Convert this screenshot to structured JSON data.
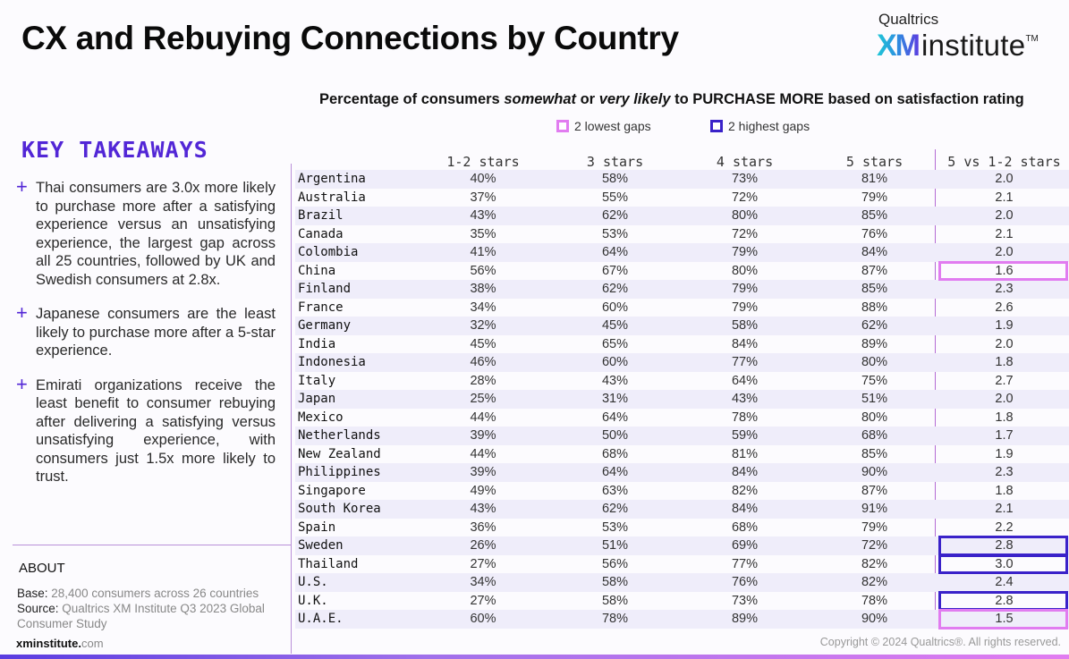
{
  "header": {
    "title": "CX and Rebuying Connections by Country",
    "logo": {
      "top": "Qualtrics",
      "xm": "XM",
      "institute": "institute",
      "tm": "TM"
    }
  },
  "chart": {
    "subtitle_parts": [
      "Percentage of consumers ",
      "somewhat",
      " or ",
      "very likely",
      " to PURCHASE MORE based on satisfaction rating"
    ],
    "legend": [
      {
        "label": "2 lowest gaps",
        "color": "#e17cf0"
      },
      {
        "label": "2 highest gaps",
        "color": "#3a22c9"
      }
    ]
  },
  "sidebar": {
    "title": "KEY TAKEAWAYS",
    "takeaways": [
      "Thai consumers are 3.0x more likely to purchase more after a satisfying experience versus an unsatisfying experience, the largest gap across all 25 countries, followed by UK and Swedish consumers at 2.8x.",
      "Japanese consumers are the least likely to purchase more after a 5-star experience.",
      "Emirati organizations receive the least benefit to consumer rebuying after delivering a satisfying versus unsatisfying experience, with consumers just 1.5x more likely to trust."
    ],
    "about": {
      "heading": "ABOUT",
      "base_label": "Base:",
      "base_value": " 28,400 consumers across 26 countries",
      "source_label": "Source:",
      "source_value": " Qualtrics XM Institute Q3 2023 Global Consumer Study"
    },
    "site_bold": "xminstitute.",
    "site_rest": "com"
  },
  "footer": {
    "copyright": "Copyright © 2024 Qualtrics®. All rights reserved."
  },
  "chart_data": {
    "type": "table",
    "title": "Percentage of consumers somewhat or very likely to PURCHASE MORE based on satisfaction rating",
    "columns": [
      "",
      "1-2 stars",
      "3 stars",
      "4 stars",
      "5 stars",
      "5 vs 1-2 stars"
    ],
    "rows": [
      {
        "country": "Argentina",
        "s12": "40%",
        "s3": "58%",
        "s4": "73%",
        "s5": "81%",
        "ratio": "2.0",
        "hl": ""
      },
      {
        "country": "Australia",
        "s12": "37%",
        "s3": "55%",
        "s4": "72%",
        "s5": "79%",
        "ratio": "2.1",
        "hl": ""
      },
      {
        "country": "Brazil",
        "s12": "43%",
        "s3": "62%",
        "s4": "80%",
        "s5": "85%",
        "ratio": "2.0",
        "hl": ""
      },
      {
        "country": "Canada",
        "s12": "35%",
        "s3": "53%",
        "s4": "72%",
        "s5": "76%",
        "ratio": "2.1",
        "hl": ""
      },
      {
        "country": "Colombia",
        "s12": "41%",
        "s3": "64%",
        "s4": "79%",
        "s5": "84%",
        "ratio": "2.0",
        "hl": ""
      },
      {
        "country": "China",
        "s12": "56%",
        "s3": "67%",
        "s4": "80%",
        "s5": "87%",
        "ratio": "1.6",
        "hl": "low"
      },
      {
        "country": "Finland",
        "s12": "38%",
        "s3": "62%",
        "s4": "79%",
        "s5": "85%",
        "ratio": "2.3",
        "hl": ""
      },
      {
        "country": "France",
        "s12": "34%",
        "s3": "60%",
        "s4": "79%",
        "s5": "88%",
        "ratio": "2.6",
        "hl": ""
      },
      {
        "country": "Germany",
        "s12": "32%",
        "s3": "45%",
        "s4": "58%",
        "s5": "62%",
        "ratio": "1.9",
        "hl": ""
      },
      {
        "country": "India",
        "s12": "45%",
        "s3": "65%",
        "s4": "84%",
        "s5": "89%",
        "ratio": "2.0",
        "hl": ""
      },
      {
        "country": "Indonesia",
        "s12": "46%",
        "s3": "60%",
        "s4": "77%",
        "s5": "80%",
        "ratio": "1.8",
        "hl": ""
      },
      {
        "country": "Italy",
        "s12": "28%",
        "s3": "43%",
        "s4": "64%",
        "s5": "75%",
        "ratio": "2.7",
        "hl": ""
      },
      {
        "country": "Japan",
        "s12": "25%",
        "s3": "31%",
        "s4": "43%",
        "s5": "51%",
        "ratio": "2.0",
        "hl": ""
      },
      {
        "country": "Mexico",
        "s12": "44%",
        "s3": "64%",
        "s4": "78%",
        "s5": "80%",
        "ratio": "1.8",
        "hl": ""
      },
      {
        "country": "Netherlands",
        "s12": "39%",
        "s3": "50%",
        "s4": "59%",
        "s5": "68%",
        "ratio": "1.7",
        "hl": ""
      },
      {
        "country": "New Zealand",
        "s12": "44%",
        "s3": "68%",
        "s4": "81%",
        "s5": "85%",
        "ratio": "1.9",
        "hl": ""
      },
      {
        "country": "Philippines",
        "s12": "39%",
        "s3": "64%",
        "s4": "84%",
        "s5": "90%",
        "ratio": "2.3",
        "hl": ""
      },
      {
        "country": "Singapore",
        "s12": "49%",
        "s3": "63%",
        "s4": "82%",
        "s5": "87%",
        "ratio": "1.8",
        "hl": ""
      },
      {
        "country": "South Korea",
        "s12": "43%",
        "s3": "62%",
        "s4": "84%",
        "s5": "91%",
        "ratio": "2.1",
        "hl": ""
      },
      {
        "country": "Spain",
        "s12": "36%",
        "s3": "53%",
        "s4": "68%",
        "s5": "79%",
        "ratio": "2.2",
        "hl": ""
      },
      {
        "country": "Sweden",
        "s12": "26%",
        "s3": "51%",
        "s4": "69%",
        "s5": "72%",
        "ratio": "2.8",
        "hl": "high"
      },
      {
        "country": "Thailand",
        "s12": "27%",
        "s3": "56%",
        "s4": "77%",
        "s5": "82%",
        "ratio": "3.0",
        "hl": "high"
      },
      {
        "country": "U.S.",
        "s12": "34%",
        "s3": "58%",
        "s4": "76%",
        "s5": "82%",
        "ratio": "2.4",
        "hl": ""
      },
      {
        "country": "U.K.",
        "s12": "27%",
        "s3": "58%",
        "s4": "73%",
        "s5": "78%",
        "ratio": "2.8",
        "hl": "high"
      },
      {
        "country": "U.A.E.",
        "s12": "60%",
        "s3": "78%",
        "s4": "89%",
        "s5": "90%",
        "ratio": "1.5",
        "hl": "low"
      }
    ]
  }
}
